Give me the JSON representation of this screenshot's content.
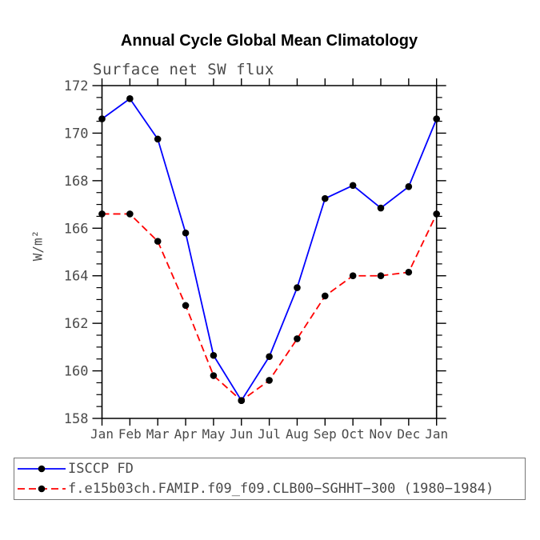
{
  "chart_data": {
    "type": "line",
    "title": "Annual Cycle Global Mean Climatology",
    "subtitle": "Surface net SW flux",
    "ylabel": "W/m²",
    "xlabel": "",
    "categories": [
      "Jan",
      "Feb",
      "Mar",
      "Apr",
      "May",
      "Jun",
      "Jul",
      "Aug",
      "Sep",
      "Oct",
      "Nov",
      "Dec",
      "Jan"
    ],
    "ylim": [
      158,
      172
    ],
    "ytick_step": 2,
    "yminor_step": 0.5,
    "grid": false,
    "legend_position": "bottom-box",
    "series": [
      {
        "name": "ISCCP FD",
        "color": "#0000ff",
        "style": "solid",
        "marker": "circle",
        "marker_color": "#000000",
        "values": [
          170.6,
          171.45,
          169.75,
          165.8,
          160.65,
          158.75,
          160.6,
          163.5,
          167.25,
          167.8,
          166.85,
          167.75,
          170.6
        ]
      },
      {
        "name": "f.e15b03ch.FAMIP.f09_f09.CLB00−SGHHT−300 (1980−1984)",
        "color": "#ff0000",
        "style": "dashed",
        "marker": "circle",
        "marker_color": "#000000",
        "values": [
          166.6,
          166.6,
          165.45,
          162.75,
          159.8,
          158.75,
          159.6,
          161.35,
          163.15,
          164.0,
          164.0,
          164.15,
          166.6
        ]
      }
    ],
    "colors": {
      "axis": "#000000",
      "tick_text": "#4a4a4a",
      "title_text": "#000000",
      "background": "#ffffff",
      "legend_border": "#777777"
    }
  }
}
